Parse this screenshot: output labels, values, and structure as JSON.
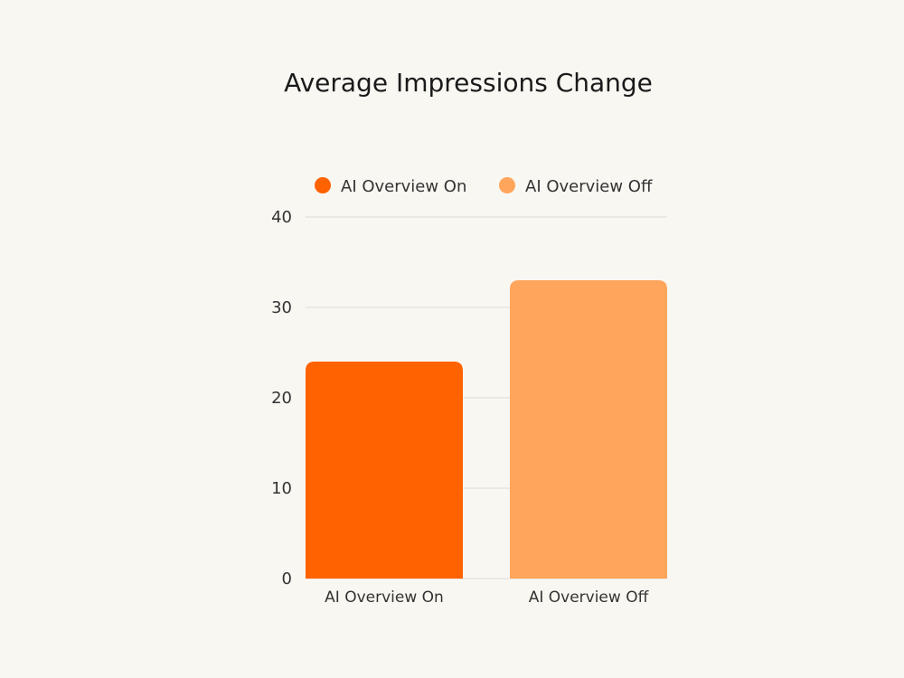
{
  "chart_data": {
    "type": "bar",
    "title": "Average Impressions Change",
    "categories": [
      "AI Overview On",
      "AI Overview Off"
    ],
    "values": [
      24,
      33
    ],
    "colors": [
      "#ff6200",
      "#ffa55c"
    ],
    "legend": {
      "position": "top",
      "entries": [
        {
          "label": "AI Overview On",
          "color": "#ff6200"
        },
        {
          "label": "AI Overview Off",
          "color": "#ffa55c"
        }
      ]
    },
    "yticks": [
      "0",
      "10",
      "20",
      "30",
      "40"
    ],
    "ylim": [
      0,
      40
    ],
    "grid": true,
    "xlabel": "",
    "ylabel": ""
  }
}
